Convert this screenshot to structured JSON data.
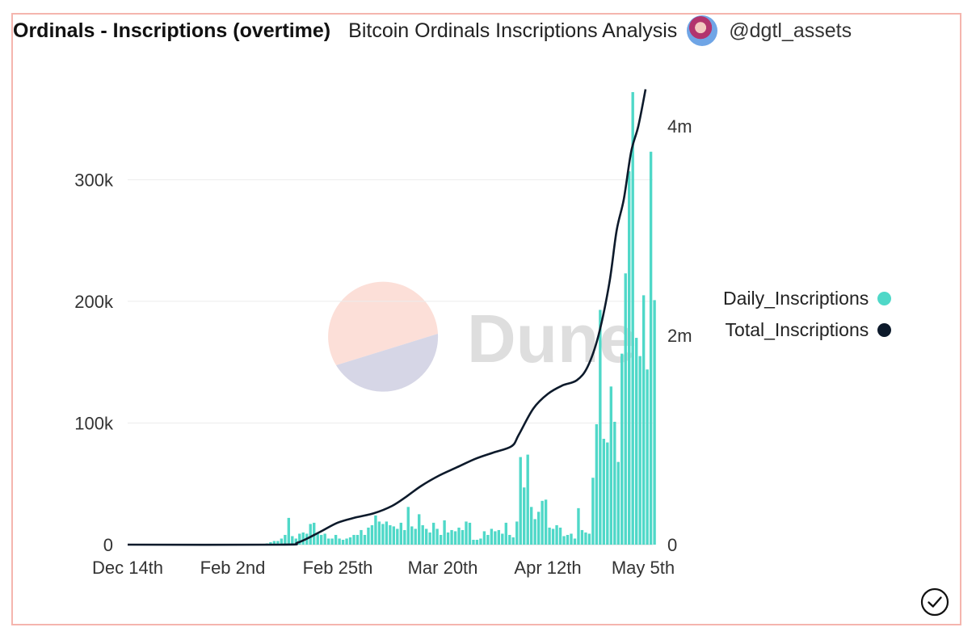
{
  "header": {
    "title": "Ordinals - Inscriptions (overtime)",
    "subtitle": "Bitcoin Ordinals Inscriptions Analysis",
    "username": "@dgtl_assets"
  },
  "watermark": {
    "text": "Dune"
  },
  "colors": {
    "daily": "#4fd8c8",
    "total": "#0d1a2b",
    "frame": "#f5b5ae",
    "grid": "#ececec"
  },
  "icons": {
    "avatar": "user-avatar-icon",
    "check": "check-circle-icon"
  },
  "chart_data": {
    "type": "bar+line",
    "x_ticks": [
      "Dec 14th",
      "Feb 2nd",
      "Feb 25th",
      "Mar 20th",
      "Apr 12th",
      "May 5th"
    ],
    "x_range": [
      "2022-12-14",
      "2023-05-08"
    ],
    "y_left": {
      "ticks": [
        "0",
        "100k",
        "200k",
        "300k"
      ],
      "tick_values": [
        0,
        100000,
        200000,
        300000
      ],
      "range": [
        0,
        370000
      ]
    },
    "y_right": {
      "ticks": [
        "0",
        "2m",
        "4m"
      ],
      "tick_values": [
        0,
        2000000,
        4000000
      ],
      "range": [
        0,
        4300000
      ]
    },
    "grid": true,
    "legend_position": "right",
    "series": [
      {
        "name": "Daily_Inscriptions",
        "kind": "bar",
        "axis": "left",
        "start_date": "2023-01-21",
        "values": [
          1000,
          2000,
          3000,
          3000,
          5000,
          8000,
          22000,
          7000,
          5000,
          9000,
          10000,
          9000,
          17000,
          18000,
          10000,
          8000,
          9000,
          5000,
          5000,
          8000,
          5000,
          4000,
          5000,
          6000,
          8000,
          8000,
          12000,
          8000,
          14000,
          16000,
          24000,
          19000,
          17000,
          19000,
          16000,
          15000,
          13000,
          18000,
          12000,
          31000,
          15000,
          13000,
          25000,
          16000,
          13000,
          10000,
          18000,
          13000,
          8000,
          20000,
          10000,
          12000,
          11000,
          14000,
          12000,
          19000,
          18000,
          4000,
          4000,
          5000,
          11000,
          8000,
          13000,
          11000,
          12000,
          9000,
          18000,
          8000,
          6000,
          19000,
          72000,
          47000,
          74000,
          31000,
          21000,
          27000,
          36000,
          37000,
          14000,
          13000,
          16000,
          14000,
          7000,
          8000,
          9000,
          5000,
          30000,
          12000,
          10000,
          9000,
          55000,
          99000,
          193000,
          87000,
          84000,
          130000,
          101000,
          68000,
          157000,
          223000,
          307000,
          372000,
          170000,
          155000,
          205000,
          144000,
          323000,
          201000
        ]
      },
      {
        "name": "Total_Inscriptions",
        "kind": "line",
        "axis": "right",
        "points": [
          [
            "2022-12-14",
            0
          ],
          [
            "2023-01-25",
            0
          ],
          [
            "2023-01-30",
            20000
          ],
          [
            "2023-02-05",
            120000
          ],
          [
            "2023-02-10",
            210000
          ],
          [
            "2023-02-15",
            260000
          ],
          [
            "2023-02-20",
            300000
          ],
          [
            "2023-02-25",
            370000
          ],
          [
            "2023-03-01",
            460000
          ],
          [
            "2023-03-05",
            560000
          ],
          [
            "2023-03-10",
            660000
          ],
          [
            "2023-03-15",
            740000
          ],
          [
            "2023-03-20",
            820000
          ],
          [
            "2023-03-25",
            880000
          ],
          [
            "2023-03-30",
            940000
          ],
          [
            "2023-04-01",
            1050000
          ],
          [
            "2023-04-05",
            1300000
          ],
          [
            "2023-04-09",
            1440000
          ],
          [
            "2023-04-13",
            1520000
          ],
          [
            "2023-04-17",
            1570000
          ],
          [
            "2023-04-20",
            1700000
          ],
          [
            "2023-04-23",
            2000000
          ],
          [
            "2023-04-26",
            2500000
          ],
          [
            "2023-04-28",
            3000000
          ],
          [
            "2023-04-30",
            3300000
          ],
          [
            "2023-05-02",
            3750000
          ],
          [
            "2023-05-04",
            4000000
          ],
          [
            "2023-05-06",
            4350000
          ]
        ]
      }
    ]
  }
}
